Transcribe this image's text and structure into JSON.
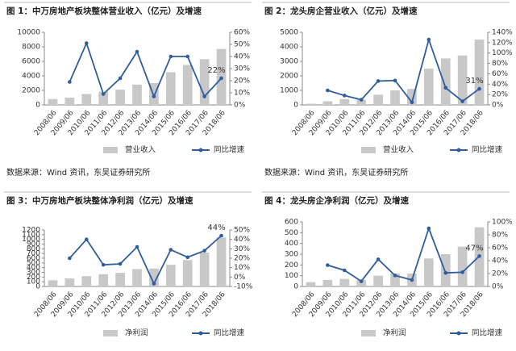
{
  "chart_data": [
    {
      "type": "combo",
      "title": "图 1：中万房地产板块整体营业收入（亿元）及增速",
      "categories": [
        "2008/06",
        "2009/06",
        "2010/06",
        "2011/06",
        "2012/06",
        "2013/06",
        "2014/06",
        "2015/06",
        "2016/06",
        "2017/06",
        "2018/06"
      ],
      "series": [
        {
          "name": "营业收入",
          "type": "bar",
          "color": "#c8c8c8",
          "values": [
            800,
            1000,
            1500,
            1800,
            2100,
            2800,
            3000,
            4500,
            5500,
            6300,
            7700
          ]
        },
        {
          "name": "同比增速",
          "type": "line",
          "axis": "y2",
          "color": "#2f5d9e",
          "values": [
            null,
            19,
            51,
            9,
            22,
            44,
            7,
            40,
            40,
            7,
            22
          ],
          "value_labels": [
            null,
            null,
            null,
            null,
            null,
            null,
            null,
            null,
            null,
            null,
            "22%"
          ]
        }
      ],
      "ylim": [
        0,
        10000
      ],
      "yticks": [
        0,
        2000,
        4000,
        6000,
        8000,
        10000
      ],
      "y2lim": [
        0,
        60
      ],
      "y2ticks": [
        {
          "value": 0,
          "label": "0%"
        },
        {
          "value": 10,
          "label": "10%"
        },
        {
          "value": 20,
          "label": "20%"
        },
        {
          "value": 30,
          "label": "30%"
        },
        {
          "value": 40,
          "label": "40%"
        },
        {
          "value": 50,
          "label": "50%"
        },
        {
          "value": 60,
          "label": "60%"
        }
      ],
      "source": "数据来源：Wind 资讯，东吴证券研究所"
    },
    {
      "type": "combo",
      "title": "图 2：龙头房企营业收入（亿元）及增速",
      "categories": [
        "2008/06",
        "2009/06",
        "2010/06",
        "2011/06",
        "2012/06",
        "2013/06",
        "2014/06",
        "2015/06",
        "2016/06",
        "2017/06",
        "2018/06"
      ],
      "series": [
        {
          "name": "营业收入",
          "type": "bar",
          "color": "#c8c8c8",
          "values": [
            80,
            250,
            400,
            350,
            700,
            1000,
            1100,
            2500,
            3200,
            3400,
            4500
          ]
        },
        {
          "name": "同比增速",
          "type": "line",
          "axis": "y2",
          "color": "#2f5d9e",
          "values": [
            null,
            28,
            18,
            10,
            46,
            47,
            5,
            126,
            33,
            7,
            31
          ],
          "value_labels": [
            null,
            null,
            null,
            null,
            null,
            null,
            null,
            null,
            null,
            null,
            "31%"
          ]
        }
      ],
      "ylim": [
        0,
        5000
      ],
      "yticks": [
        0,
        1000,
        2000,
        3000,
        4000,
        5000
      ],
      "y2lim": [
        0,
        140
      ],
      "y2ticks": [
        {
          "value": 0,
          "label": "0%"
        },
        {
          "value": 20,
          "label": "20%"
        },
        {
          "value": 40,
          "label": "40%"
        },
        {
          "value": 60,
          "label": "60%"
        },
        {
          "value": 80,
          "label": "80%"
        },
        {
          "value": 100,
          "label": "100%"
        },
        {
          "value": 120,
          "label": "120%"
        },
        {
          "value": 140,
          "label": "140%"
        }
      ],
      "source": "数据来源：Wind 资讯，东吴证券研究所"
    },
    {
      "type": "combo",
      "title": "图 3：中万房地产板块整体净利润（亿元）及增速",
      "categories": [
        "2008/06",
        "2009/06",
        "2010/06",
        "2011/06",
        "2012/06",
        "2013/06",
        "2014/06",
        "2015/06",
        "2016/06",
        "2017/06",
        "2018/06"
      ],
      "series": [
        {
          "name": "净利润",
          "type": "bar",
          "color": "#c8c8c8",
          "values": [
            130,
            170,
            220,
            260,
            290,
            370,
            380,
            460,
            560,
            720,
            1040
          ]
        },
        {
          "name": "同比增速",
          "type": "line",
          "axis": "y2",
          "color": "#2f5d9e",
          "values": [
            null,
            20,
            40,
            13,
            14,
            32,
            -7,
            29,
            21,
            28,
            44
          ],
          "value_labels": [
            null,
            null,
            null,
            null,
            null,
            null,
            null,
            null,
            null,
            null,
            "44%"
          ]
        }
      ],
      "ylim": [
        0,
        1200
      ],
      "yticks": [
        0,
        100,
        200,
        300,
        400,
        500,
        600,
        700,
        800,
        900,
        1000,
        1100,
        1200
      ],
      "y2lim": [
        -10,
        50
      ],
      "y2ticks": [
        {
          "value": -10,
          "label": "-10%"
        },
        {
          "value": 0,
          "label": "0%"
        },
        {
          "value": 10,
          "label": "10%"
        },
        {
          "value": 20,
          "label": "20%"
        },
        {
          "value": 30,
          "label": "30%"
        },
        {
          "value": 40,
          "label": "40%"
        },
        {
          "value": 50,
          "label": "50%"
        }
      ]
    },
    {
      "type": "combo",
      "title": "图 4：龙头房企净利润（亿元）及增速",
      "categories": [
        "2008/06",
        "2009/06",
        "2010/06",
        "2011/06",
        "2012/06",
        "2013/06",
        "2014/06",
        "2015/06",
        "2016/06",
        "2017/06",
        "2018/06"
      ],
      "series": [
        {
          "name": "净利润",
          "type": "bar",
          "color": "#c8c8c8",
          "values": [
            40,
            60,
            70,
            60,
            100,
            120,
            120,
            260,
            300,
            370,
            550
          ]
        },
        {
          "name": "同比增速",
          "type": "line",
          "axis": "y2",
          "color": "#2f5d9e",
          "values": [
            null,
            33,
            25,
            8,
            42,
            17,
            10,
            90,
            21,
            22,
            47
          ],
          "value_labels": [
            null,
            null,
            null,
            null,
            null,
            null,
            null,
            null,
            null,
            null,
            "47%"
          ]
        }
      ],
      "ylim": [
        0,
        600
      ],
      "yticks": [
        0,
        100,
        200,
        300,
        400,
        500,
        600
      ],
      "y2lim": [
        0,
        100
      ],
      "y2ticks": [
        {
          "value": 0,
          "label": "0%"
        },
        {
          "value": 20,
          "label": "20%"
        },
        {
          "value": 40,
          "label": "40%"
        },
        {
          "value": 60,
          "label": "60%"
        },
        {
          "value": 80,
          "label": "80%"
        },
        {
          "value": 100,
          "label": "100%"
        }
      ]
    }
  ]
}
